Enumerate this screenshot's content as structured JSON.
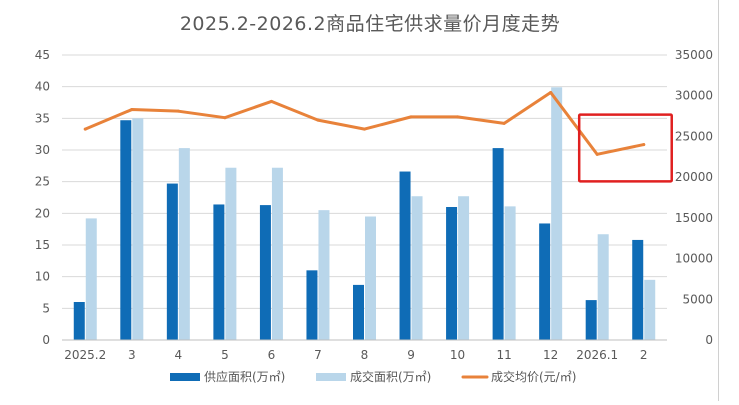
{
  "chart_data": {
    "type": "bar",
    "title": "2025.2-2026.2商品住宅供求量价月度走势",
    "categories": [
      "2025.2",
      "3",
      "4",
      "5",
      "6",
      "7",
      "8",
      "9",
      "10",
      "11",
      "12",
      "2026.1",
      "2"
    ],
    "series": [
      {
        "name": "供应面积(万㎡)",
        "type": "bar",
        "axis": "left",
        "color": "#0f6cb6",
        "values": [
          6.0,
          34.7,
          24.7,
          21.4,
          21.3,
          11.0,
          8.7,
          26.6,
          21.0,
          30.3,
          18.4,
          6.3,
          15.8
        ]
      },
      {
        "name": "成交面积(万㎡)",
        "type": "bar",
        "axis": "left",
        "color": "#b9d6ea",
        "values": [
          19.2,
          35.0,
          30.3,
          27.2,
          27.2,
          20.5,
          19.5,
          22.7,
          22.7,
          21.1,
          39.9,
          16.7,
          9.5
        ]
      },
      {
        "name": "成交均价(元/㎡)",
        "type": "line",
        "axis": "right",
        "color": "#e8823a",
        "values": [
          25900,
          28300,
          28100,
          27300,
          29300,
          27000,
          25900,
          27400,
          27400,
          26600,
          30400,
          22800,
          24000
        ]
      }
    ],
    "y_left": {
      "min": 0,
      "max": 45,
      "step": 5,
      "ticks": [
        "0",
        "5",
        "10",
        "15",
        "20",
        "25",
        "30",
        "35",
        "40",
        "45"
      ]
    },
    "y_right": {
      "min": 0,
      "max": 35000,
      "step": 5000,
      "ticks": [
        "0",
        "5000",
        "10000",
        "15000",
        "20000",
        "25000",
        "30000",
        "35000"
      ]
    },
    "grid": true,
    "legend_position": "bottom",
    "annotation": {
      "type": "highlight-box",
      "covers_categories": [
        "2026.1",
        "2"
      ],
      "color": "#e02020"
    }
  }
}
